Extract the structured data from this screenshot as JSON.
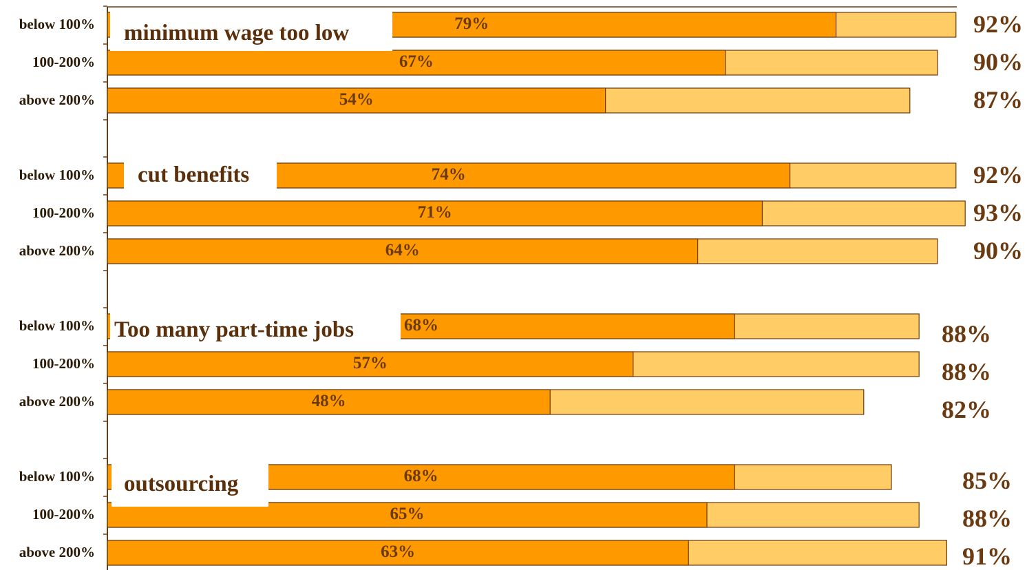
{
  "colors": {
    "dark": "#ff9900",
    "light": "#ffcc66",
    "border": "#6b3a10",
    "text": "#6b3a10"
  },
  "chart_data": {
    "type": "bar",
    "orientation": "horizontal",
    "stacked": true,
    "xlim": [
      0,
      100
    ],
    "groups": [
      {
        "title": "minimum wage too low",
        "rows": [
          {
            "category": "below 100%",
            "inner": 79,
            "total": 92,
            "inner_label": "79%",
            "total_label": "92%"
          },
          {
            "category": "100-200%",
            "inner": 67,
            "total": 90,
            "inner_label": "67%",
            "total_label": "90%"
          },
          {
            "category": "above 200%",
            "inner": 54,
            "total": 87,
            "inner_label": "54%",
            "total_label": "87%"
          }
        ]
      },
      {
        "title": "cut benefits",
        "rows": [
          {
            "category": "below 100%",
            "inner": 74,
            "total": 92,
            "inner_label": "74%",
            "total_label": "92%"
          },
          {
            "category": "100-200%",
            "inner": 71,
            "total": 93,
            "inner_label": "71%",
            "total_label": "93%"
          },
          {
            "category": "above 200%",
            "inner": 64,
            "total": 90,
            "inner_label": "64%",
            "total_label": "90%"
          }
        ]
      },
      {
        "title": "Too many part-time jobs",
        "rows": [
          {
            "category": "below 100%",
            "inner": 68,
            "total": 88,
            "inner_label": "68%",
            "total_label": "88%"
          },
          {
            "category": "100-200%",
            "inner": 57,
            "total": 88,
            "inner_label": "57%",
            "total_label": "88%"
          },
          {
            "category": "above 200%",
            "inner": 48,
            "total": 82,
            "inner_label": "48%",
            "total_label": "82%"
          }
        ]
      },
      {
        "title": "outsourcing",
        "rows": [
          {
            "category": "below 100%",
            "inner": 68,
            "total": 85,
            "inner_label": "68%",
            "total_label": "85%"
          },
          {
            "category": "100-200%",
            "inner": 65,
            "total": 88,
            "inner_label": "65%",
            "total_label": "88%"
          },
          {
            "category": "above 200%",
            "inner": 63,
            "total": 91,
            "inner_label": "63%",
            "total_label": "91%"
          }
        ]
      }
    ]
  }
}
